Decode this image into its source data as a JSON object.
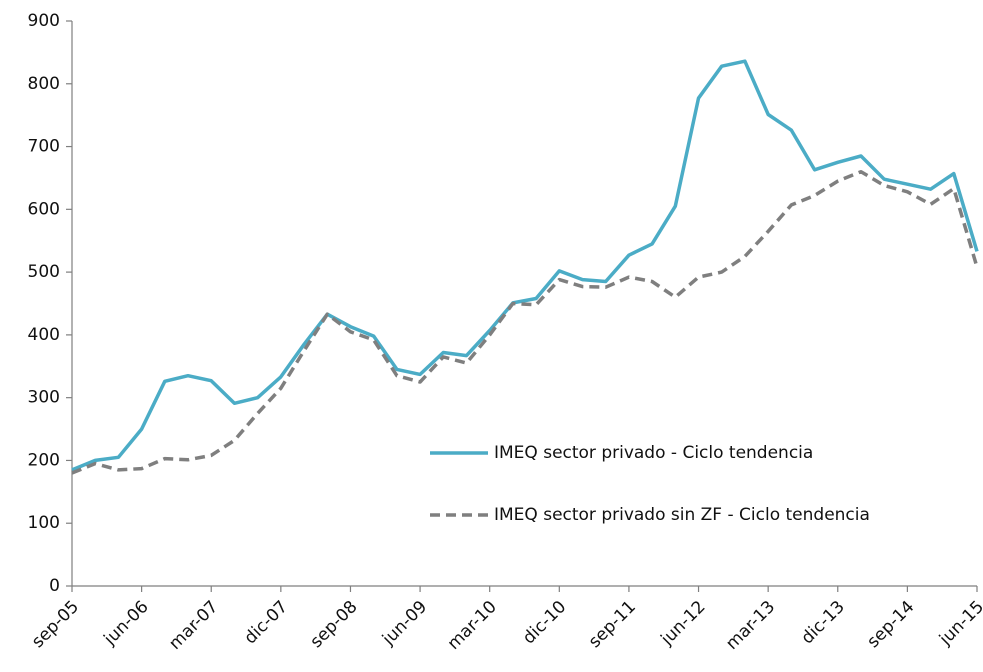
{
  "chart_data": {
    "type": "line",
    "categories": [
      "sep-05",
      null,
      null,
      "jun-06",
      null,
      null,
      "mar-07",
      null,
      null,
      "dic-07",
      null,
      null,
      "sep-08",
      null,
      null,
      "jun-09",
      null,
      null,
      "mar-10",
      null,
      null,
      "dic-10",
      null,
      null,
      "sep-11",
      null,
      null,
      "jun-12",
      null,
      null,
      "mar-13",
      null,
      null,
      "dic-13",
      null,
      null,
      "sep-14",
      null,
      null,
      "jun-15"
    ],
    "series": [
      {
        "name": "IMEQ sector privado - Ciclo tendencia",
        "color": "#4bacc6",
        "line_style": "solid",
        "values": [
          185,
          200,
          205,
          250,
          326,
          335,
          327,
          291,
          300,
          333,
          385,
          433,
          413,
          398,
          345,
          337,
          372,
          367,
          407,
          451,
          458,
          502,
          488,
          485,
          527,
          545,
          605,
          777,
          828,
          836,
          751,
          726,
          663,
          675,
          685,
          648,
          640,
          632,
          657,
          533
        ]
      },
      {
        "name": "IMEQ sector privado sin ZF - Ciclo tendencia",
        "color": "#7f7f7f",
        "line_style": "dashed",
        "values": [
          180,
          195,
          185,
          187,
          203,
          201,
          208,
          232,
          275,
          315,
          375,
          433,
          405,
          392,
          335,
          325,
          365,
          355,
          400,
          450,
          448,
          488,
          477,
          476,
          492,
          485,
          460,
          492,
          500,
          525,
          565,
          607,
          622,
          645,
          660,
          638,
          628,
          608,
          633,
          508
        ]
      }
    ],
    "ylim": [
      0,
      900
    ],
    "yticks": [
      0,
      100,
      200,
      300,
      400,
      500,
      600,
      700,
      800,
      900
    ],
    "grid": false,
    "legend_position": "center-right"
  }
}
